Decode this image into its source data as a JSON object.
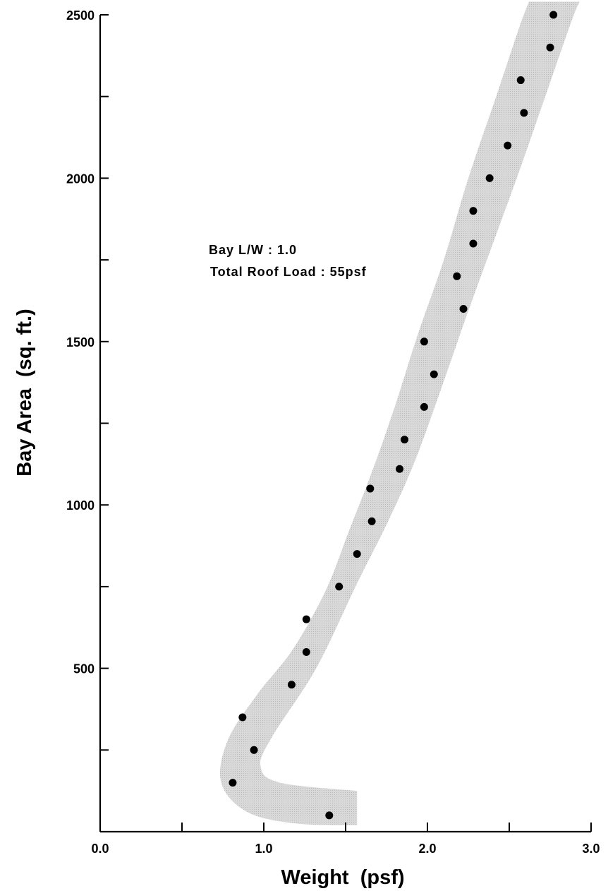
{
  "chart_data": {
    "type": "scatter",
    "title": "",
    "xlabel": "Weight  (psf)",
    "ylabel": "Bay Area  (sq. ft.)",
    "xlim": [
      0,
      3.0
    ],
    "ylim": [
      0,
      2500
    ],
    "x_tick_labels": [
      "0.0",
      "1.0",
      "2.0",
      "3.0"
    ],
    "y_tick_labels": [
      "500",
      "1000",
      "1500",
      "2000",
      "2500"
    ],
    "annotations": [
      "Bay L/W : 1.0",
      "Total Roof Load : 55psf"
    ],
    "grid": false,
    "band_color": "#d9d9d9",
    "point_color": "#000000",
    "series": [
      {
        "points": [
          {
            "x": 1.4,
            "y": 50
          },
          {
            "x": 0.81,
            "y": 150
          },
          {
            "x": 0.94,
            "y": 250
          },
          {
            "x": 0.87,
            "y": 350
          },
          {
            "x": 1.17,
            "y": 450
          },
          {
            "x": 1.26,
            "y": 550
          },
          {
            "x": 1.26,
            "y": 650
          },
          {
            "x": 1.46,
            "y": 750
          },
          {
            "x": 1.57,
            "y": 850
          },
          {
            "x": 1.66,
            "y": 950
          },
          {
            "x": 1.65,
            "y": 1050
          },
          {
            "x": 1.83,
            "y": 1110
          },
          {
            "x": 1.86,
            "y": 1200
          },
          {
            "x": 1.98,
            "y": 1300
          },
          {
            "x": 2.04,
            "y": 1400
          },
          {
            "x": 1.98,
            "y": 1500
          },
          {
            "x": 2.22,
            "y": 1600
          },
          {
            "x": 2.18,
            "y": 1700
          },
          {
            "x": 2.28,
            "y": 1800
          },
          {
            "x": 2.28,
            "y": 1900
          },
          {
            "x": 2.38,
            "y": 2000
          },
          {
            "x": 2.49,
            "y": 2100
          },
          {
            "x": 2.59,
            "y": 2200
          },
          {
            "x": 2.57,
            "y": 2300
          },
          {
            "x": 2.75,
            "y": 2400
          },
          {
            "x": 2.77,
            "y": 2500
          }
        ]
      }
    ],
    "band": {
      "left": [
        {
          "x": 1.57,
          "y": 20
        },
        {
          "x": 1.2,
          "y": 25
        },
        {
          "x": 0.9,
          "y": 60
        },
        {
          "x": 0.74,
          "y": 150
        },
        {
          "x": 0.78,
          "y": 280
        },
        {
          "x": 0.96,
          "y": 420
        },
        {
          "x": 1.18,
          "y": 560
        },
        {
          "x": 1.38,
          "y": 740
        },
        {
          "x": 1.52,
          "y": 920
        },
        {
          "x": 1.66,
          "y": 1100
        },
        {
          "x": 1.8,
          "y": 1300
        },
        {
          "x": 1.94,
          "y": 1520
        },
        {
          "x": 2.1,
          "y": 1750
        },
        {
          "x": 2.25,
          "y": 2000
        },
        {
          "x": 2.42,
          "y": 2250
        },
        {
          "x": 2.56,
          "y": 2460
        },
        {
          "x": 2.62,
          "y": 2540
        }
      ],
      "right": [
        {
          "x": 1.57,
          "y": 125
        },
        {
          "x": 1.1,
          "y": 150
        },
        {
          "x": 0.98,
          "y": 200
        },
        {
          "x": 1.05,
          "y": 290
        },
        {
          "x": 1.32,
          "y": 500
        },
        {
          "x": 1.57,
          "y": 760
        },
        {
          "x": 1.76,
          "y": 950
        },
        {
          "x": 1.92,
          "y": 1130
        },
        {
          "x": 2.08,
          "y": 1350
        },
        {
          "x": 2.24,
          "y": 1580
        },
        {
          "x": 2.4,
          "y": 1800
        },
        {
          "x": 2.56,
          "y": 2020
        },
        {
          "x": 2.72,
          "y": 2250
        },
        {
          "x": 2.88,
          "y": 2480
        },
        {
          "x": 2.93,
          "y": 2540
        }
      ]
    }
  }
}
